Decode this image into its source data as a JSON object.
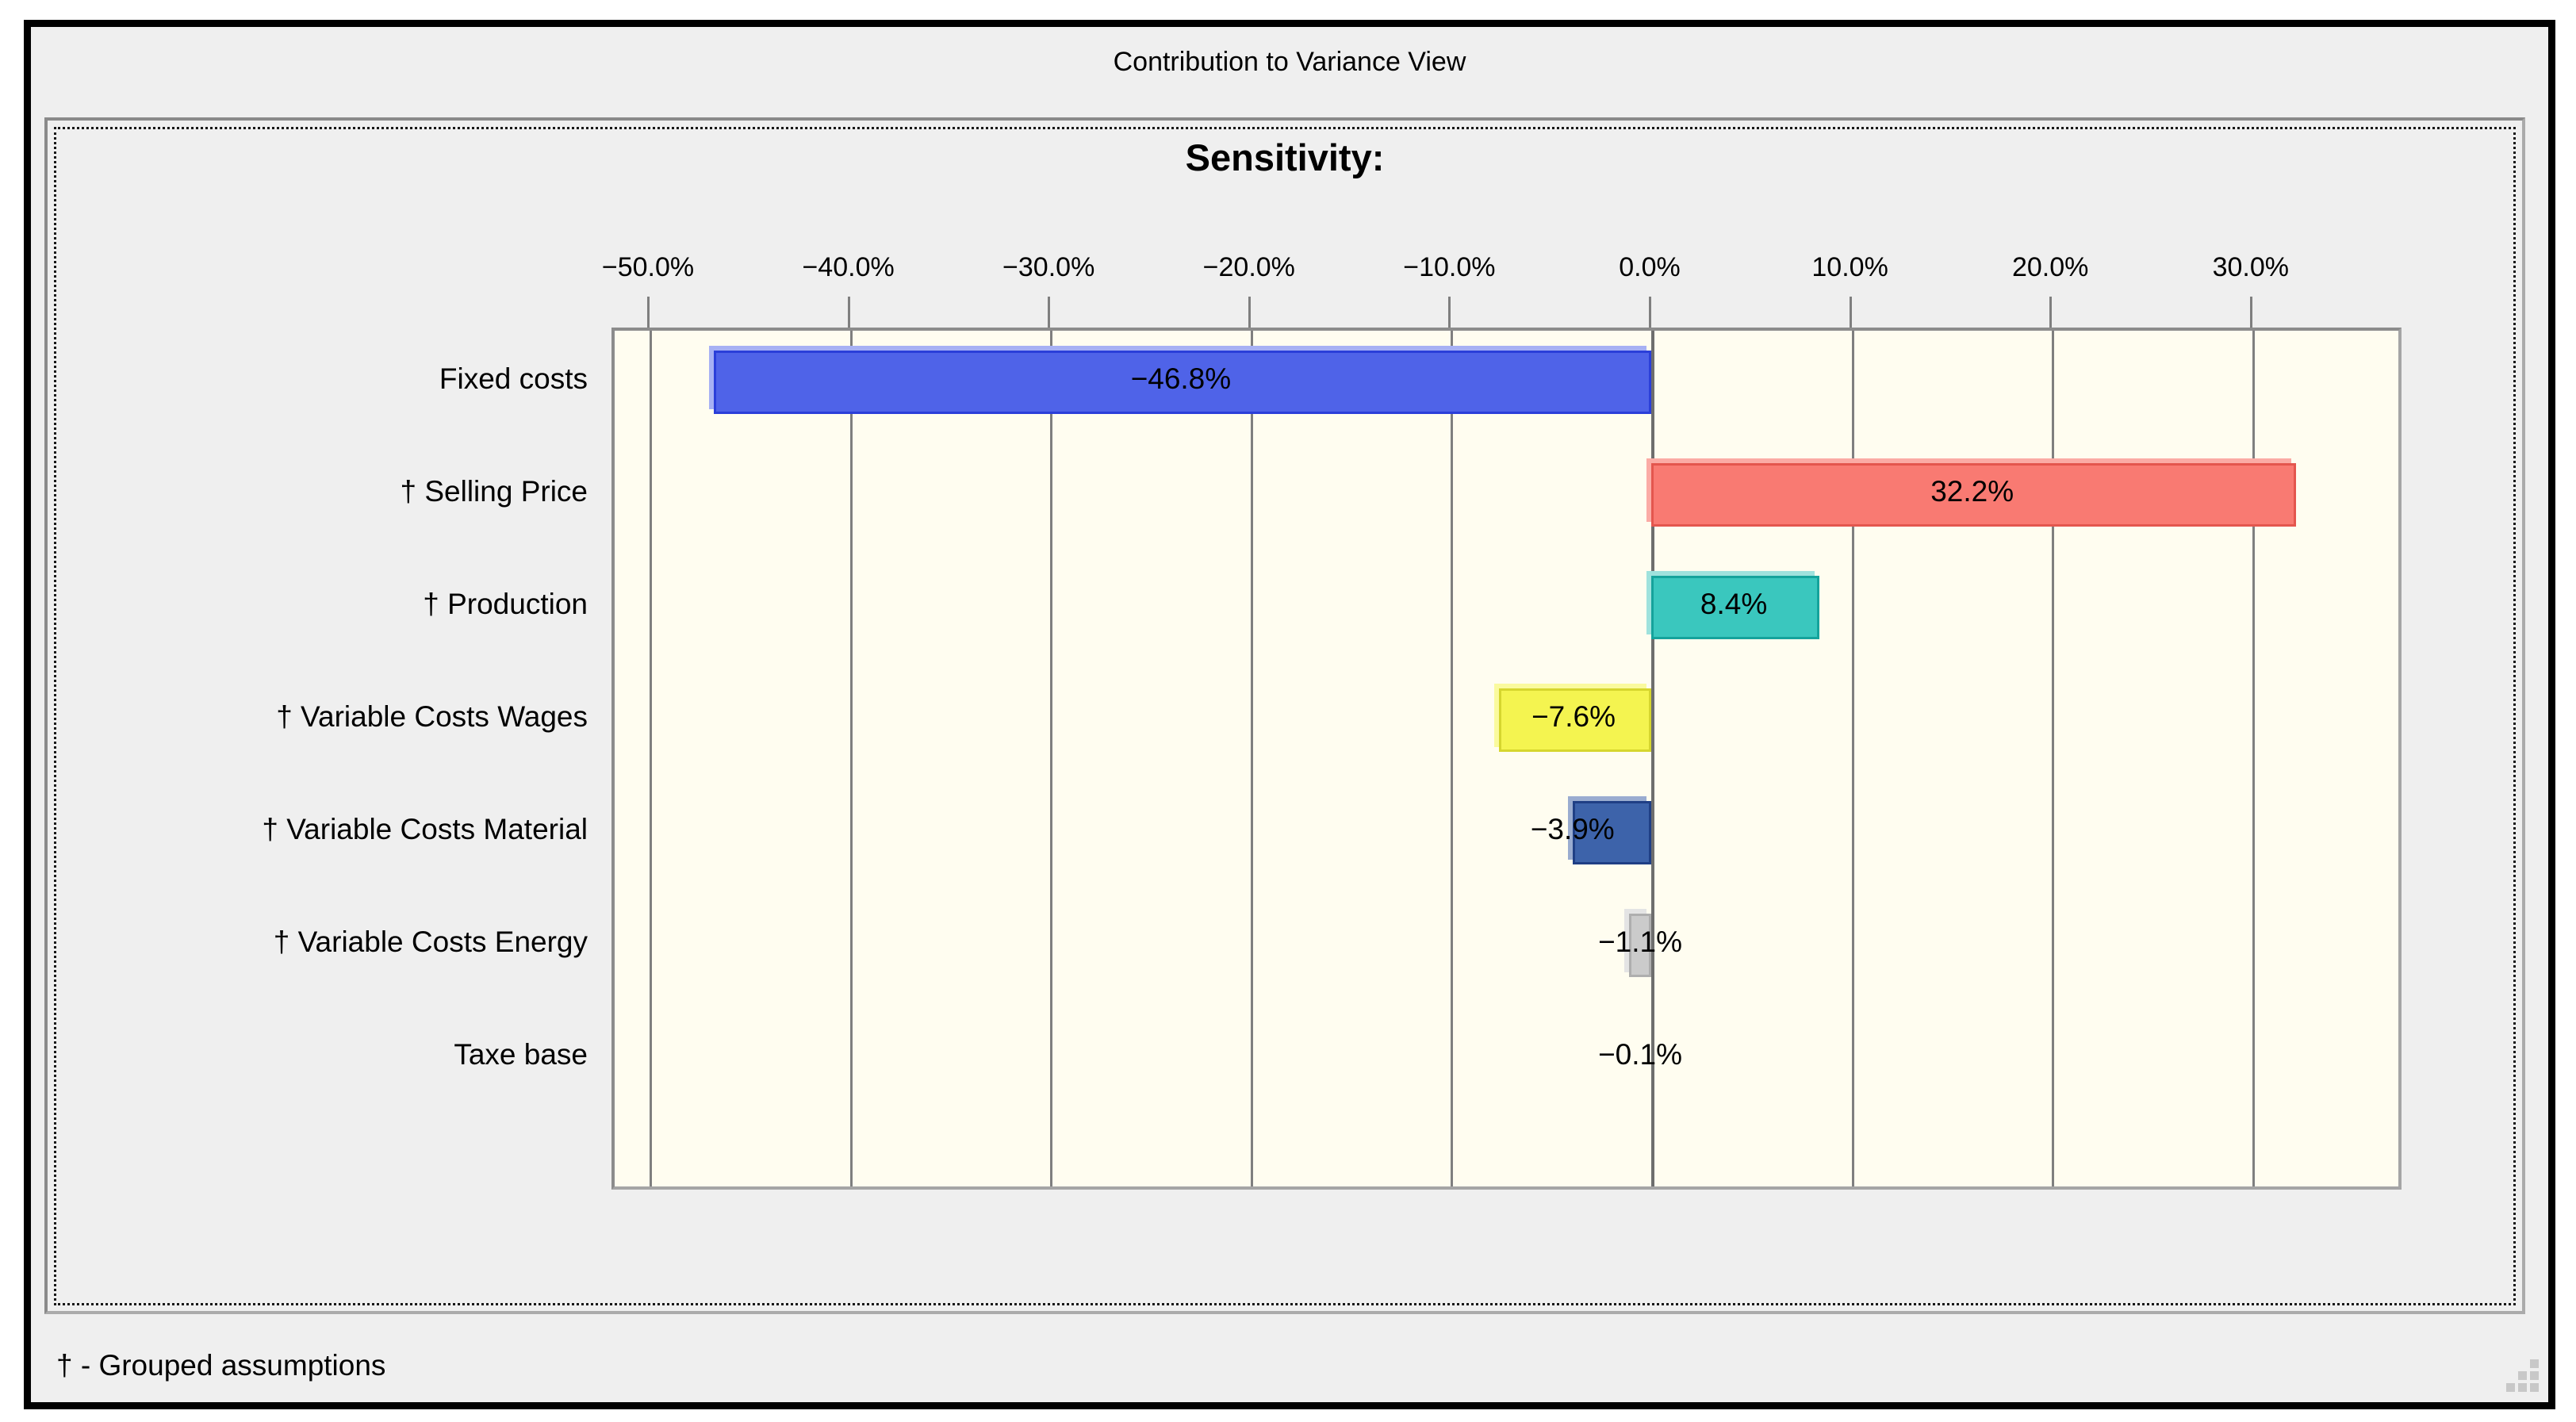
{
  "window": {
    "title": "Contribution to Variance View",
    "footnote": "† - Grouped assumptions",
    "background": "#efefef"
  },
  "chart_data": {
    "type": "bar",
    "orientation": "horizontal",
    "title": "Sensitivity:",
    "xlabel": "",
    "ylabel": "",
    "categories": [
      "Fixed costs",
      "† Selling Price",
      "† Production",
      "† Variable Costs Wages",
      "† Variable Costs Material",
      "† Variable Costs Energy",
      "Taxe base"
    ],
    "values": [
      -46.8,
      32.2,
      8.4,
      -7.6,
      -3.9,
      -1.1,
      -0.1
    ],
    "value_labels": [
      "−46.8%",
      "32.2%",
      "8.4%",
      "−7.6%",
      "−3.9%",
      "−1.1%",
      "−0.1%"
    ],
    "x_tick_values": [
      -50,
      -40,
      -30,
      -20,
      -10,
      0,
      10,
      20,
      30
    ],
    "x_tick_labels": [
      "−50.0%",
      "−40.0%",
      "−30.0%",
      "−20.0%",
      "−10.0%",
      "0.0%",
      "10.0%",
      "20.0%",
      "30.0%"
    ],
    "xlim": [
      -51.8,
      37.5
    ],
    "grid": true,
    "legend": null,
    "plot_bg": "#fffdf0",
    "gridline_color": "#7f7f7f",
    "zero_line_color": "#6e6e6e",
    "bar_styles": [
      {
        "fill": "#4F63E8",
        "border": "#2B3FD9",
        "halo": "#A7B1F4"
      },
      {
        "fill": "#F97A72",
        "border": "#E4564E",
        "halo": "#FBABA5"
      },
      {
        "fill": "#3AC7BE",
        "border": "#15A39C",
        "halo": "#9FE2DD"
      },
      {
        "fill": "#F4F450",
        "border": "#D6D62E",
        "halo": "#FAFA9E"
      },
      {
        "fill": "#3D63AA",
        "border": "#1F3F85",
        "halo": "#9AACD0"
      },
      {
        "fill": "#CBCBCB",
        "border": "#AEAEAE",
        "halo": "#E4E4E4"
      },
      {
        "fill": "#CBCBCB",
        "border": "#AEAEAE",
        "halo": "#E4E4E4"
      }
    ]
  }
}
